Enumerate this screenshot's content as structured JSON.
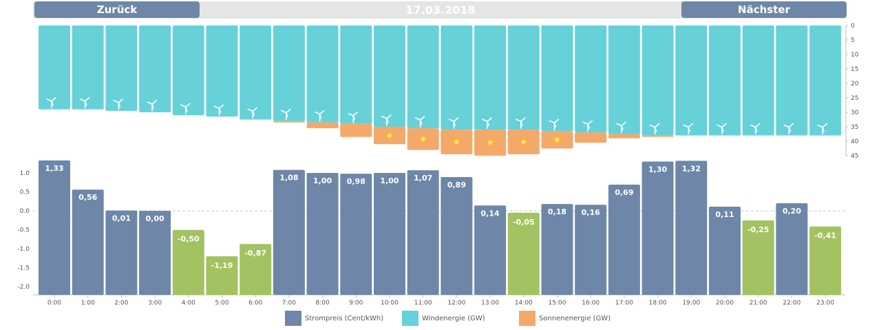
{
  "nav": {
    "prev_label": "Zurück",
    "next_label": "Nächster",
    "date": "17.03.2018"
  },
  "colors": {
    "price_pos": "#6e87a8",
    "price_neg": "#a3c262",
    "wind": "#66d1d8",
    "solar": "#f4a86a",
    "sun": "#f6c21a"
  },
  "legend": [
    {
      "label": "Strompreis (Cent/kWh)",
      "color": "#6e87a8"
    },
    {
      "label": "Windenergie (GW)",
      "color": "#66d1d8"
    },
    {
      "label": "Sonnenenergie (GW)",
      "color": "#f4a86a"
    }
  ],
  "chart_data": [
    {
      "type": "bar",
      "categories": [
        "0:00",
        "1:00",
        "2:00",
        "3:00",
        "4:00",
        "5:00",
        "6:00",
        "7:00",
        "8:00",
        "9:00",
        "10:00",
        "11:00",
        "12:00",
        "13:00",
        "14:00",
        "15:00",
        "16:00",
        "17:00",
        "18:00",
        "19:00",
        "20:00",
        "21:00",
        "22:00",
        "23:00"
      ],
      "series": [
        {
          "name": "Windenergie (GW)",
          "values": [
            29,
            29,
            29.5,
            30,
            31,
            31.5,
            32.5,
            33,
            33.5,
            34,
            35,
            35.5,
            36,
            36,
            36,
            36.5,
            37,
            37.5,
            38,
            38,
            38,
            38,
            38,
            38
          ]
        },
        {
          "name": "Sonnenenergie (GW)",
          "values": [
            0,
            0,
            0,
            0,
            0,
            0,
            0,
            0.5,
            2,
            4.5,
            6,
            7.5,
            8.5,
            9,
            8.5,
            6,
            3.5,
            1.5,
            0.3,
            0,
            0,
            0,
            0,
            0
          ]
        }
      ],
      "stacked": true,
      "y_inverted": true,
      "ylim": [
        0,
        45
      ],
      "yticks": [
        0,
        5,
        10,
        15,
        20,
        25,
        30,
        35,
        40,
        45
      ]
    },
    {
      "type": "bar",
      "categories": [
        "0:00",
        "1:00",
        "2:00",
        "3:00",
        "4:00",
        "5:00",
        "6:00",
        "7:00",
        "8:00",
        "9:00",
        "10:00",
        "11:00",
        "12:00",
        "13:00",
        "14:00",
        "15:00",
        "16:00",
        "17:00",
        "18:00",
        "19:00",
        "20:00",
        "21:00",
        "22:00",
        "23:00"
      ],
      "series": [
        {
          "name": "Strompreis (Cent/kWh)",
          "values": [
            1.33,
            0.56,
            0.01,
            0.0,
            -0.5,
            -1.19,
            -0.87,
            1.08,
            1.0,
            0.98,
            1.0,
            1.07,
            0.89,
            0.14,
            -0.05,
            0.18,
            0.16,
            0.69,
            1.3,
            1.32,
            0.11,
            -0.25,
            0.2,
            -0.41
          ]
        }
      ],
      "value_labels": [
        "1,33",
        "0,56",
        "0,01",
        "0,00",
        "-0,50",
        "-1,19",
        "-0,87",
        "1,08",
        "1,00",
        "0,98",
        "1,00",
        "1,07",
        "0,89",
        "0,14",
        "-0,05",
        "0,18",
        "0,16",
        "0,69",
        "1,30",
        "1,32",
        "0,11",
        "-0,25",
        "0,20",
        "-0,41"
      ],
      "ylim": [
        -2.2,
        1.35
      ],
      "yticks": [
        1.0,
        0.5,
        0.0,
        -0.5,
        -1.0,
        -1.5,
        -2.0
      ],
      "ytick_labels": [
        "1.0",
        "0.5",
        "0.0",
        "-0.5",
        "-1.0",
        "-1.5",
        "-2.0"
      ]
    }
  ]
}
